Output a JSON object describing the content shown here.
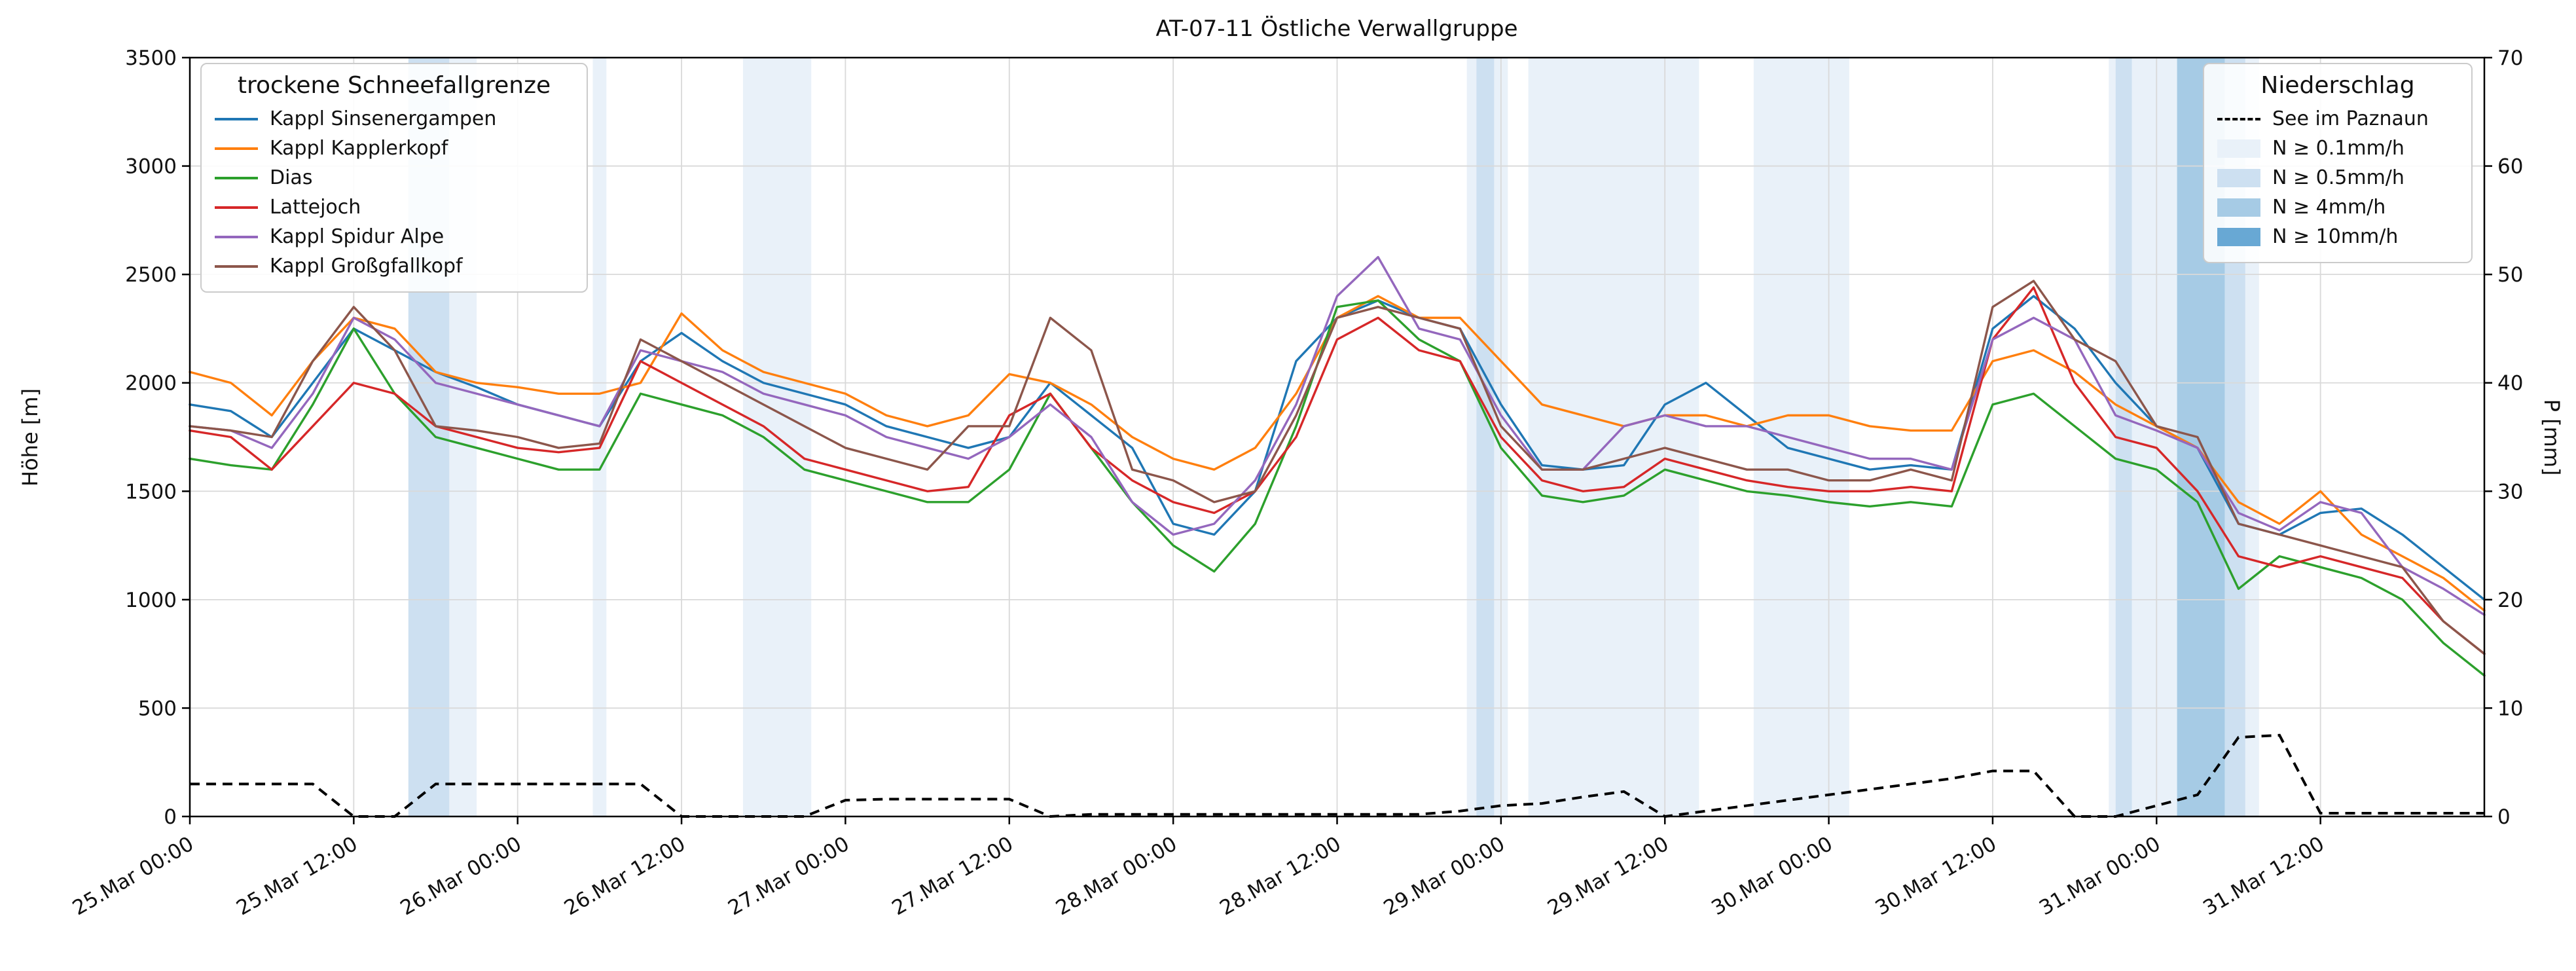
{
  "chart_data": {
    "type": "line",
    "title": "AT-07-11 Östliche Verwallgruppe",
    "ylabel_left": "Höhe [m]",
    "ylabel_right": "P [mm]",
    "ylim_left": [
      0,
      3500
    ],
    "ylim_right": [
      0,
      70
    ],
    "xlim_hours": [
      0,
      168
    ],
    "grid": true,
    "legend_left_title": "trockene Schneefallgrenze",
    "legend_right_title": "Niederschlag",
    "y_ticks_left": [
      0,
      500,
      1000,
      1500,
      2000,
      2500,
      3000,
      3500
    ],
    "y_ticks_right": [
      0,
      10,
      20,
      30,
      40,
      50,
      60,
      70
    ],
    "x_ticks": [
      {
        "hour": 0,
        "label": "25.Mar 00:00"
      },
      {
        "hour": 12,
        "label": "25.Mar 12:00"
      },
      {
        "hour": 24,
        "label": "26.Mar 00:00"
      },
      {
        "hour": 36,
        "label": "26.Mar 12:00"
      },
      {
        "hour": 48,
        "label": "27.Mar 00:00"
      },
      {
        "hour": 60,
        "label": "27.Mar 12:00"
      },
      {
        "hour": 72,
        "label": "28.Mar 00:00"
      },
      {
        "hour": 84,
        "label": "28.Mar 12:00"
      },
      {
        "hour": 96,
        "label": "29.Mar 00:00"
      },
      {
        "hour": 108,
        "label": "29.Mar 12:00"
      },
      {
        "hour": 120,
        "label": "30.Mar 00:00"
      },
      {
        "hour": 132,
        "label": "30.Mar 12:00"
      },
      {
        "hour": 144,
        "label": "31.Mar 00:00"
      },
      {
        "hour": 156,
        "label": "31.Mar 12:00"
      }
    ],
    "x_hours": [
      0,
      3,
      6,
      9,
      12,
      15,
      18,
      21,
      24,
      27,
      30,
      33,
      36,
      39,
      42,
      45,
      48,
      51,
      54,
      57,
      60,
      63,
      66,
      69,
      72,
      75,
      78,
      81,
      84,
      87,
      90,
      93,
      96,
      99,
      102,
      105,
      108,
      111,
      114,
      117,
      120,
      123,
      126,
      129,
      132,
      135,
      138,
      141,
      144,
      147,
      150,
      153,
      156,
      159,
      162,
      165,
      168
    ],
    "series": [
      {
        "name": "Kappl Sinsenergampen",
        "color": "#1f77b4",
        "values": [
          1900,
          1870,
          1750,
          2000,
          2250,
          2150,
          2050,
          1980,
          1900,
          1850,
          1800,
          2100,
          2230,
          2100,
          2000,
          1950,
          1900,
          1800,
          1750,
          1700,
          1750,
          2000,
          1850,
          1700,
          1350,
          1300,
          1500,
          2100,
          2300,
          2380,
          2300,
          2250,
          1900,
          1620,
          1600,
          1620,
          1900,
          2000,
          1850,
          1700,
          1650,
          1600,
          1620,
          1600,
          2250,
          2400,
          2250,
          2000,
          1800,
          1700,
          1350,
          1300,
          1400,
          1420,
          1300,
          1150,
          1000
        ]
      },
      {
        "name": "Kappl Kapplerkopf",
        "color": "#ff7f0e",
        "values": [
          2050,
          2000,
          1850,
          2100,
          2300,
          2250,
          2050,
          2000,
          1980,
          1950,
          1950,
          2000,
          2320,
          2150,
          2050,
          2000,
          1950,
          1850,
          1800,
          1850,
          2040,
          2000,
          1900,
          1750,
          1650,
          1600,
          1700,
          1950,
          2300,
          2400,
          2300,
          2300,
          2100,
          1900,
          1850,
          1800,
          1850,
          1850,
          1800,
          1850,
          1850,
          1800,
          1780,
          1780,
          2100,
          2150,
          2050,
          1900,
          1800,
          1700,
          1450,
          1350,
          1500,
          1300,
          1200,
          1100,
          950
        ]
      },
      {
        "name": "Dias",
        "color": "#2ca02c",
        "values": [
          1650,
          1620,
          1600,
          1900,
          2250,
          1950,
          1750,
          1700,
          1650,
          1600,
          1600,
          1950,
          1900,
          1850,
          1750,
          1600,
          1550,
          1500,
          1450,
          1450,
          1600,
          1950,
          1700,
          1450,
          1250,
          1130,
          1350,
          1800,
          2350,
          2380,
          2200,
          2100,
          1700,
          1480,
          1450,
          1480,
          1600,
          1550,
          1500,
          1480,
          1450,
          1430,
          1450,
          1430,
          1900,
          1950,
          1800,
          1650,
          1600,
          1450,
          1050,
          1200,
          1150,
          1100,
          1000,
          800,
          650
        ]
      },
      {
        "name": "Lattejoch",
        "color": "#d62728",
        "values": [
          1780,
          1750,
          1600,
          1800,
          2000,
          1950,
          1800,
          1750,
          1700,
          1680,
          1700,
          2100,
          2000,
          1900,
          1800,
          1650,
          1600,
          1550,
          1500,
          1520,
          1850,
          1950,
          1700,
          1550,
          1450,
          1400,
          1500,
          1750,
          2200,
          2300,
          2150,
          2100,
          1750,
          1550,
          1500,
          1520,
          1650,
          1600,
          1550,
          1520,
          1500,
          1500,
          1520,
          1500,
          2200,
          2440,
          2000,
          1750,
          1700,
          1500,
          1200,
          1150,
          1200,
          1150,
          1100,
          900,
          750
        ]
      },
      {
        "name": "Kappl Spidur Alpe",
        "color": "#9467bd",
        "values": [
          1800,
          1780,
          1700,
          1950,
          2300,
          2200,
          2000,
          1950,
          1900,
          1850,
          1800,
          2150,
          2100,
          2050,
          1950,
          1900,
          1850,
          1750,
          1700,
          1650,
          1750,
          1900,
          1750,
          1450,
          1300,
          1350,
          1550,
          1900,
          2400,
          2580,
          2250,
          2200,
          1850,
          1600,
          1600,
          1800,
          1850,
          1800,
          1800,
          1750,
          1700,
          1650,
          1650,
          1600,
          2200,
          2300,
          2200,
          1850,
          1780,
          1700,
          1400,
          1320,
          1450,
          1400,
          1150,
          1050,
          930
        ]
      },
      {
        "name": "Kappl Großgfallkopf",
        "color": "#8c564b",
        "values": [
          1800,
          1780,
          1750,
          2100,
          2350,
          2150,
          1800,
          1780,
          1750,
          1700,
          1720,
          2200,
          2100,
          2000,
          1900,
          1800,
          1700,
          1650,
          1600,
          1800,
          1800,
          2300,
          2150,
          1600,
          1550,
          1450,
          1500,
          1850,
          2300,
          2350,
          2300,
          2250,
          1800,
          1600,
          1600,
          1650,
          1700,
          1650,
          1600,
          1600,
          1550,
          1550,
          1600,
          1550,
          2350,
          2470,
          2200,
          2100,
          1800,
          1750,
          1350,
          1300,
          1250,
          1200,
          1150,
          900,
          750
        ]
      }
    ],
    "precip_line": {
      "name": "See im Paznaun",
      "color": "#000000",
      "style": "dashed",
      "axis": "right",
      "values": [
        3,
        3,
        3,
        3,
        0,
        0,
        3,
        3,
        3,
        3,
        3,
        3,
        0,
        0,
        0,
        0,
        1.5,
        1.6,
        1.6,
        1.6,
        1.6,
        0,
        0.2,
        0.2,
        0.2,
        0.2,
        0.2,
        0.2,
        0.2,
        0.2,
        0.2,
        0.5,
        1.0,
        1.2,
        1.8,
        2.3,
        0,
        0.5,
        1.0,
        1.5,
        2.0,
        2.5,
        3.0,
        3.5,
        4.2,
        4.2,
        0,
        0,
        1.0,
        2.0,
        7.3,
        7.5,
        0.3,
        0.3,
        0.3,
        0.3,
        0.3
      ]
    },
    "precip_legend": [
      {
        "label": "See im Paznaun",
        "type": "dashed-line",
        "color": "#000000"
      },
      {
        "label": "N ≥ 0.1mm/h",
        "type": "patch",
        "color": "#e9f1f9"
      },
      {
        "label": "N ≥ 0.5mm/h",
        "type": "patch",
        "color": "#cde0f1"
      },
      {
        "label": "N ≥ 4mm/h",
        "type": "patch",
        "color": "#a6cbe5"
      },
      {
        "label": "N ≥ 10mm/h",
        "type": "patch",
        "color": "#68a8d4"
      }
    ],
    "band_colors": {
      "1": "#e9f1f9",
      "2": "#cde0f1",
      "3": "#a6cbe5",
      "4": "#68a8d4"
    },
    "precip_bands": [
      {
        "start": 16,
        "end": 19,
        "level": 2
      },
      {
        "start": 19,
        "end": 21,
        "level": 1
      },
      {
        "start": 29.5,
        "end": 30.5,
        "level": 1
      },
      {
        "start": 40.5,
        "end": 45.5,
        "level": 1
      },
      {
        "start": 93.5,
        "end": 94.2,
        "level": 1
      },
      {
        "start": 94.2,
        "end": 95.5,
        "level": 2
      },
      {
        "start": 95.5,
        "end": 96.5,
        "level": 1
      },
      {
        "start": 98,
        "end": 110.5,
        "level": 1
      },
      {
        "start": 114.5,
        "end": 121.5,
        "level": 1
      },
      {
        "start": 140.5,
        "end": 141,
        "level": 1
      },
      {
        "start": 141,
        "end": 142.2,
        "level": 2
      },
      {
        "start": 142.2,
        "end": 145.5,
        "level": 1
      },
      {
        "start": 145.5,
        "end": 149,
        "level": 3
      },
      {
        "start": 149,
        "end": 150.5,
        "level": 2
      },
      {
        "start": 150.5,
        "end": 151.5,
        "level": 1
      }
    ],
    "colors": {
      "grid": "#d9d9d9",
      "spine": "#000000",
      "background": "#ffffff"
    }
  }
}
